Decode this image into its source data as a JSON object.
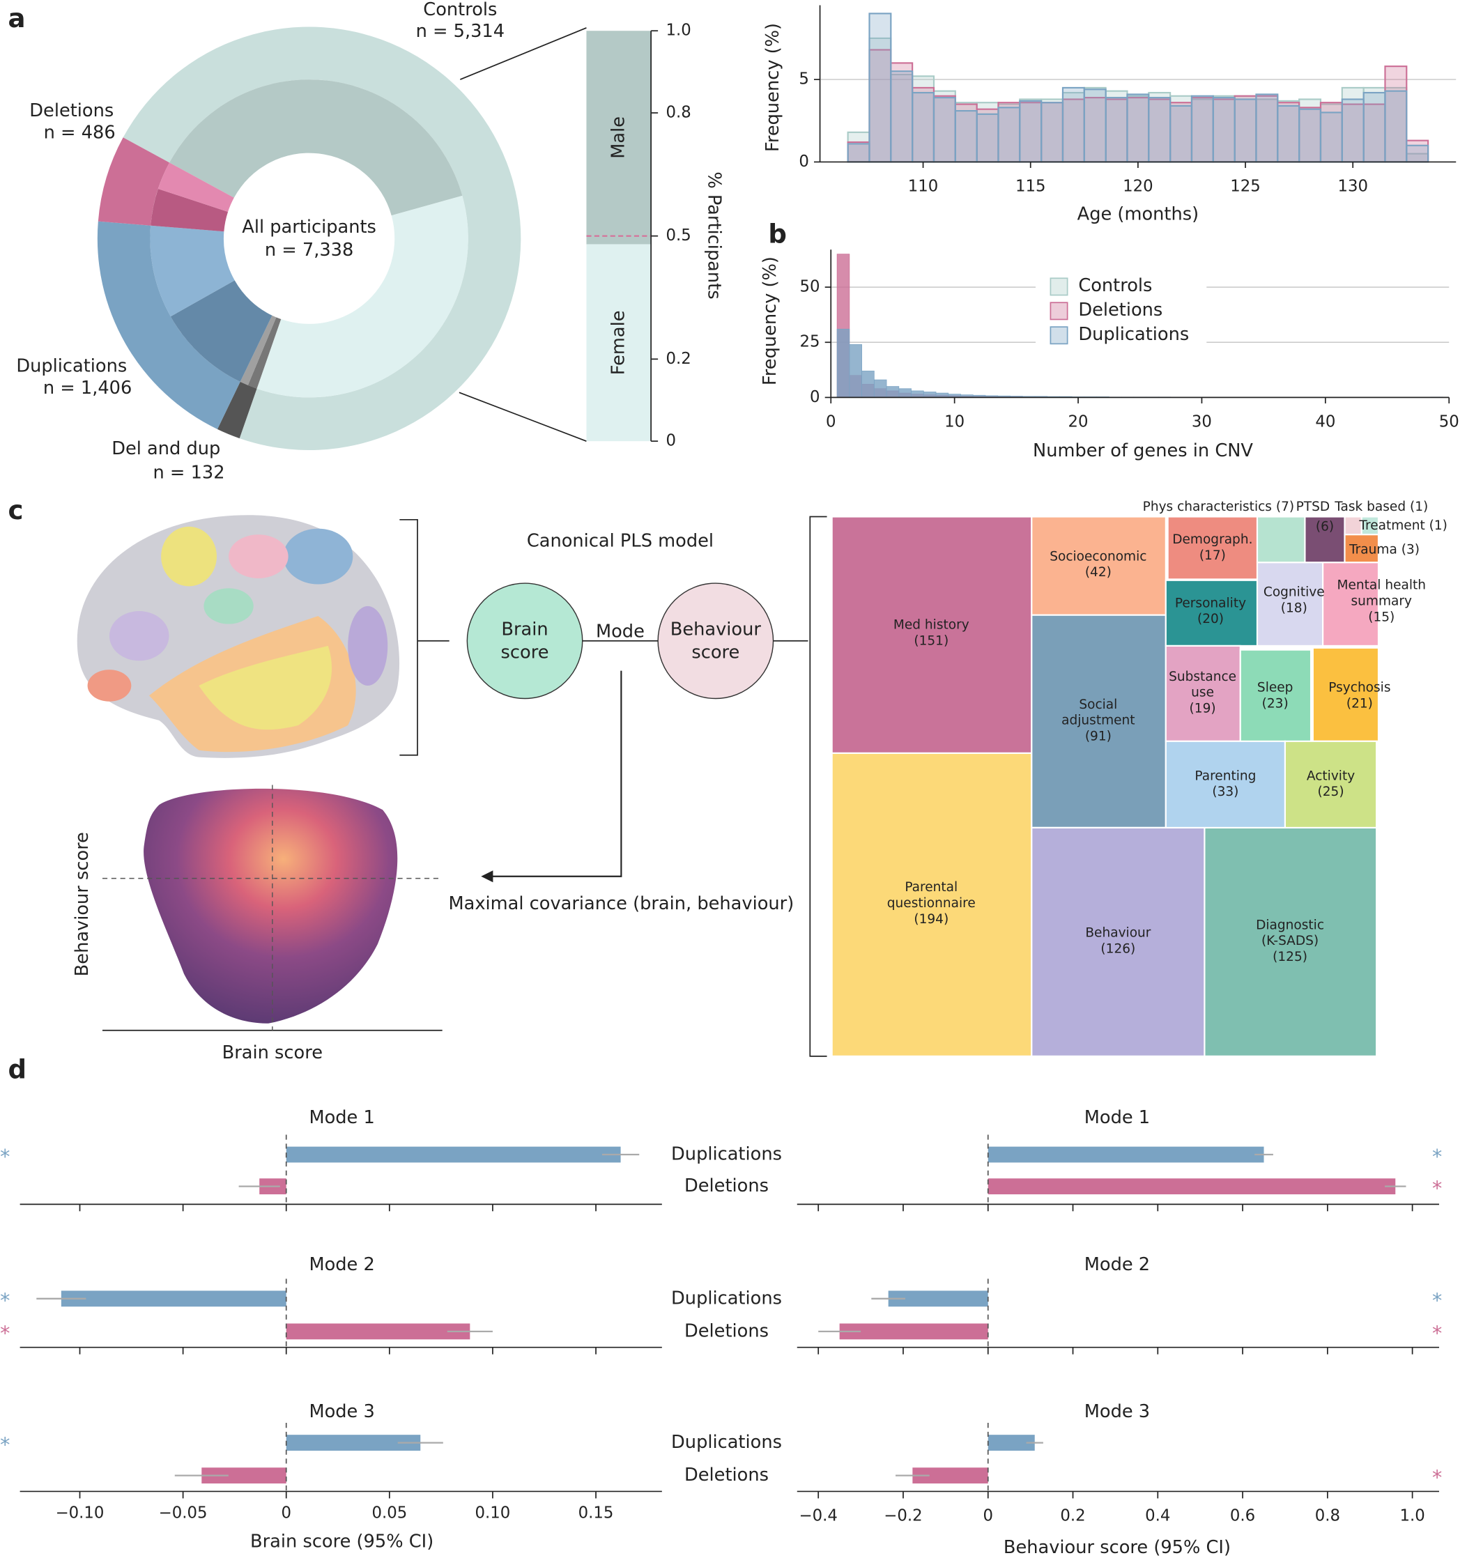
{
  "panels": [
    "a",
    "b",
    "c",
    "d"
  ],
  "diagram": {
    "title": "Canonical PLS model",
    "brain_node": [
      "Brain",
      "score"
    ],
    "link": "Mode",
    "behaviour_node": [
      "Behaviour",
      "score"
    ],
    "output": "Maximal covariance (brain, behaviour)",
    "scatter_x": "Brain score",
    "scatter_y": "Behaviour score"
  },
  "chart_data": [
    {
      "type": "donut",
      "categories": [
        "Controls",
        "Del and dup",
        "Duplications",
        "Deletions"
      ],
      "values": [
        5314,
        132,
        1406,
        486
      ],
      "value_labels": [
        "n = 5,314",
        "n = 132",
        "n = 1,406",
        "n = 486"
      ],
      "colors": [
        "#c9dfdc",
        "#555555",
        "#7aa3c3",
        "#cc6f96"
      ],
      "inner_values": [
        [
          2770,
          2544
        ],
        [
          70,
          62
        ],
        [
          712,
          694
        ],
        [
          276,
          210
        ]
      ],
      "inner_colors": [
        [
          "#b4c9c6",
          "#dff1f0"
        ],
        [
          "#777777",
          "#a0a0a0"
        ],
        [
          "#6489a8",
          "#8db4d4"
        ],
        [
          "#b85a82",
          "#e389b0"
        ]
      ],
      "center_title": "All participants",
      "center_label": "n = 7,338"
    },
    {
      "type": "stacked_bar",
      "categories": [
        "Female",
        "Male"
      ],
      "values": [
        0.48,
        0.52
      ],
      "colors": [
        "#dff1f0",
        "#b4c9c6"
      ],
      "ylim": [
        0,
        1
      ],
      "yticks": [
        0,
        0.2,
        0.5,
        0.8,
        {
          "value": 1,
          "label": "1.0"
        }
      ],
      "ylabel": "% Participants",
      "reference_line": 0.5,
      "reference_color": "#d66f98"
    },
    {
      "type": "histogram",
      "bins": [
        106.5,
        107.5,
        108.5,
        109.5,
        110.5,
        111.5,
        112.5,
        113.5,
        114.5,
        115.5,
        116.5,
        117.5,
        118.5,
        119.5,
        120.5,
        121.5,
        122.5,
        123.5,
        124.5,
        125.5,
        126.5,
        127.5,
        128.5,
        129.5,
        130.5,
        131.5,
        132.5,
        133.5
      ],
      "series": [
        {
          "name": "Controls",
          "color": "#a9cbc7",
          "values": [
            1.8,
            7.5,
            5.3,
            5.2,
            4.3,
            3.6,
            3.6,
            3.5,
            3.8,
            3.8,
            4.2,
            4.5,
            4.3,
            4.0,
            4.2,
            4.0,
            3.8,
            4.0,
            4.0,
            3.8,
            3.7,
            3.8,
            3.5,
            4.5,
            4.5,
            4.5,
            0.5
          ]
        },
        {
          "name": "Deletions",
          "color": "#cc6f96",
          "values": [
            1.2,
            6.8,
            6.0,
            4.5,
            4.0,
            3.5,
            3.2,
            3.6,
            3.6,
            3.6,
            3.8,
            3.9,
            3.8,
            3.9,
            3.8,
            3.6,
            3.9,
            3.8,
            4.0,
            4.0,
            3.6,
            3.3,
            3.6,
            3.5,
            3.5,
            5.8,
            1.3
          ]
        },
        {
          "name": "Duplications",
          "color": "#7aa3c3",
          "values": [
            1.1,
            9.0,
            5.5,
            4.2,
            3.9,
            3.1,
            2.9,
            3.3,
            3.7,
            3.6,
            4.5,
            4.4,
            3.9,
            4.1,
            3.9,
            3.4,
            4.0,
            3.9,
            3.8,
            4.1,
            3.4,
            3.2,
            3.0,
            3.8,
            4.2,
            4.3,
            1.0
          ]
        }
      ],
      "xlim": [
        105.2,
        134.8
      ],
      "ylim": [
        0,
        9.5
      ],
      "xticks": [
        110,
        115,
        120,
        125,
        130
      ],
      "yticks": [
        0,
        5
      ],
      "xlabel": "Age (months)",
      "ylabel": "Frequency (%)",
      "grid": true
    },
    {
      "type": "histogram",
      "bins": [
        0.5,
        1.5,
        2.5,
        3.5,
        4.5,
        5.5,
        6.5,
        7.5,
        8.5,
        9.5,
        10.5,
        11.5,
        12.5,
        13.5,
        14.5,
        15.5,
        16.5,
        17.5,
        18.5,
        19.5,
        20.5,
        21.5,
        22.5,
        23.5,
        24.5,
        25.5,
        26.5,
        27.5,
        28.5,
        29.5,
        30.5,
        31.5,
        32.5,
        33.5,
        34.5,
        35.5,
        36.5,
        37.5,
        38.5,
        39.5,
        40.5,
        41.5,
        42.5,
        43.5,
        44.5,
        45.5,
        46.5,
        47.5,
        48.5,
        49.5
      ],
      "series": [
        {
          "color": "#cc6f96",
          "values": [
            65,
            10,
            6,
            4,
            3,
            2,
            1.5,
            1.2,
            1,
            0.8,
            0.6,
            0.5,
            0.4,
            0.3,
            0.3,
            0.2,
            0.2,
            0.2,
            0.1,
            0.1,
            0.1,
            0.1,
            0.1,
            0.1,
            0.1,
            0,
            0,
            0,
            0,
            0,
            0,
            0,
            0,
            0,
            0,
            0,
            0,
            0,
            0,
            0,
            0,
            0,
            0,
            0,
            0,
            0,
            0,
            0,
            0
          ]
        },
        {
          "color": "#7aa3c3",
          "values": [
            31,
            24,
            12,
            8,
            5,
            4,
            3,
            2.5,
            2,
            1.5,
            1.2,
            1,
            0.8,
            0.7,
            0.6,
            0.5,
            0.5,
            0.4,
            0.4,
            0.3,
            0.3,
            0.3,
            0.2,
            0.2,
            0.2,
            0.2,
            0.2,
            0.1,
            0.1,
            0.1,
            0.1,
            0.1,
            0.1,
            0.1,
            0.1,
            0.1,
            0.1,
            0.1,
            0.1,
            0.1,
            0.1,
            0.1,
            0.1,
            0.1,
            0.1,
            0.1,
            0.1,
            0.1,
            0.2
          ]
        }
      ],
      "xlim": [
        0,
        50
      ],
      "ylim": [
        0,
        67
      ],
      "xticks": [
        0,
        10,
        20,
        30,
        40,
        50
      ],
      "yticks": [
        0,
        25,
        50
      ],
      "xlabel": "Number of genes in CNV",
      "ylabel": "Frequency (%)",
      "grid": true
    },
    {
      "type": "treemap",
      "categories": [
        "Med history",
        "Parental\nquestionnaire",
        "Socioeconomic",
        "Social\nadjustment",
        "Behaviour",
        "Diagnostic\n(K-SADS)",
        "Demograph.",
        "Personality",
        "Substance\nuse",
        "Sleep",
        "Psychosis",
        "Parenting",
        "Activity",
        "Cognitive",
        "Mental health\nsummary",
        "Phys characteristics",
        "PTSD",
        "Task based",
        "Treatment",
        "Trauma"
      ],
      "values": [
        151,
        194,
        42,
        91,
        126,
        125,
        17,
        20,
        19,
        23,
        21,
        33,
        25,
        18,
        15,
        7,
        6,
        1,
        1,
        3
      ],
      "value_labels": [
        "(151)",
        "(194)",
        "(42)",
        "(91)",
        "(126)",
        "(125)",
        "(17)",
        "(20)",
        "(19)",
        "(23)",
        "(21)",
        "(33)",
        "(25)",
        "(18)",
        "(15)",
        "(7)",
        "(6)",
        "(1)",
        "(1)",
        "(3)"
      ],
      "colors": [
        "#c97399",
        "#fcd978",
        "#fbb390",
        "#7a9fb8",
        "#b5afda",
        "#7fbfb0",
        "#ee8c80",
        "#2b9494",
        "#e3a3c3",
        "#8ddbb7",
        "#fbc040",
        "#b0d3ee",
        "#cde287",
        "#d8d8ef",
        "#f5a8c0",
        "#b6e3d0",
        "#7a4e73",
        "#f2d3d8",
        "#c1e8dc",
        "#f28e4b"
      ]
    },
    {
      "type": "hbar",
      "title": "Mode 1",
      "categories": [
        "Duplications",
        "Deletions"
      ],
      "values": [
        0.162,
        -0.013
      ],
      "errors": [
        0.009,
        0.01
      ],
      "colors": [
        "#7aa3c3",
        "#cc6f96"
      ],
      "markers": [
        "*",
        null
      ],
      "xlim": [
        -0.129,
        0.182
      ],
      "xticks": [
        -0.1,
        -0.05,
        0,
        0.05,
        0.1,
        0.15
      ]
    },
    {
      "type": "hbar",
      "title": "Mode 2",
      "categories": [
        "Duplications",
        "Deletions"
      ],
      "values": [
        -0.109,
        0.089
      ],
      "errors": [
        0.012,
        0.011
      ],
      "colors": [
        "#7aa3c3",
        "#cc6f96"
      ],
      "markers": [
        "*",
        "*"
      ],
      "xlim": [
        -0.129,
        0.182
      ],
      "xticks": [
        -0.1,
        -0.05,
        0,
        0.05,
        0.1,
        0.15
      ]
    },
    {
      "type": "hbar",
      "title": "Mode 3",
      "categories": [
        "Duplications",
        "Deletions"
      ],
      "values": [
        0.065,
        -0.041
      ],
      "errors": [
        0.011,
        0.013
      ],
      "colors": [
        "#7aa3c3",
        "#cc6f96"
      ],
      "markers": [
        "*",
        null
      ],
      "xlim": [
        -0.129,
        0.182
      ],
      "xticks": [
        {
          "value": -0.1,
          "label": "−0.10"
        },
        {
          "value": -0.05,
          "label": "−0.05"
        },
        0,
        0.05,
        {
          "value": 0.1,
          "label": "0.10"
        },
        0.15
      ],
      "xlabel": "Brain score (95% CI)"
    },
    {
      "type": "hbar",
      "title": "Mode 1",
      "values": [
        0.65,
        0.96
      ],
      "errors": [
        0.022,
        0.025
      ],
      "colors": [
        "#7aa3c3",
        "#cc6f96"
      ],
      "markers": [
        "*",
        "*"
      ],
      "xlim": [
        -0.45,
        1.063
      ],
      "xticks": [
        -0.4,
        -0.2,
        0,
        0.2,
        0.4,
        0.6,
        0.8,
        1
      ]
    },
    {
      "type": "hbar",
      "title": "Mode 2",
      "values": [
        -0.235,
        -0.35
      ],
      "errors": [
        0.04,
        0.05
      ],
      "colors": [
        "#7aa3c3",
        "#cc6f96"
      ],
      "markers": [
        "*",
        "*"
      ],
      "xlim": [
        -0.45,
        1.063
      ],
      "xticks": [
        -0.4,
        -0.2,
        0,
        0.2,
        0.4,
        0.6,
        0.8,
        1
      ]
    },
    {
      "type": "hbar",
      "title": "Mode 3",
      "values": [
        0.11,
        -0.178
      ],
      "errors": [
        0.02,
        0.04
      ],
      "colors": [
        "#7aa3c3",
        "#cc6f96"
      ],
      "markers": [
        null,
        "*"
      ],
      "xlim": [
        -0.45,
        1.063
      ],
      "xticks": [
        {
          "value": -0.4,
          "label": "−0.4"
        },
        {
          "value": -0.2,
          "label": "−0.2"
        },
        0,
        0.2,
        0.4,
        0.6,
        0.8,
        {
          "value": 1,
          "label": "1.0"
        }
      ],
      "xlabel": "Behaviour score (95% CI)"
    }
  ]
}
